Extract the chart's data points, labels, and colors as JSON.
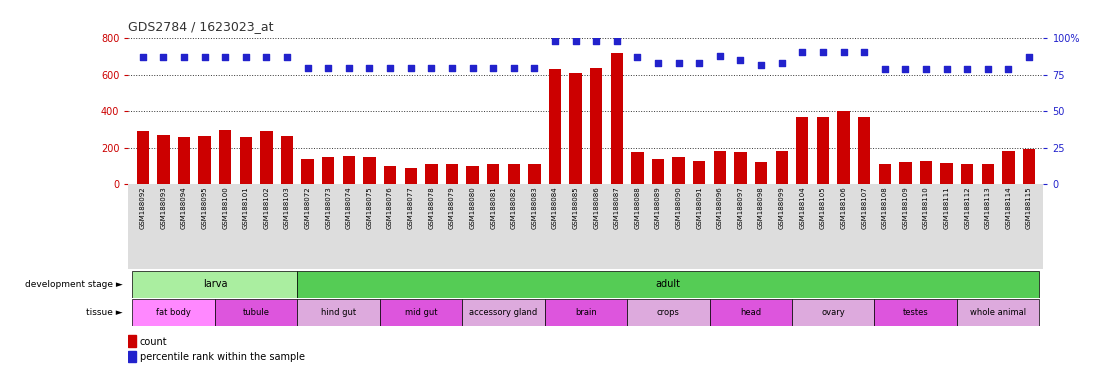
{
  "title": "GDS2784 / 1623023_at",
  "samples": [
    "GSM188092",
    "GSM188093",
    "GSM188094",
    "GSM188095",
    "GSM188100",
    "GSM188101",
    "GSM188102",
    "GSM188103",
    "GSM188072",
    "GSM188073",
    "GSM188074",
    "GSM188075",
    "GSM188076",
    "GSM188077",
    "GSM188078",
    "GSM188079",
    "GSM188080",
    "GSM188081",
    "GSM188082",
    "GSM188083",
    "GSM188084",
    "GSM188085",
    "GSM188086",
    "GSM188087",
    "GSM188088",
    "GSM188089",
    "GSM188090",
    "GSM188091",
    "GSM188096",
    "GSM188097",
    "GSM188098",
    "GSM188099",
    "GSM188104",
    "GSM188105",
    "GSM188106",
    "GSM188107",
    "GSM188108",
    "GSM188109",
    "GSM188110",
    "GSM188111",
    "GSM188112",
    "GSM188113",
    "GSM188114",
    "GSM188115"
  ],
  "counts": [
    290,
    270,
    260,
    265,
    300,
    260,
    290,
    265,
    140,
    148,
    155,
    148,
    100,
    90,
    110,
    110,
    100,
    110,
    110,
    110,
    630,
    610,
    640,
    720,
    175,
    140,
    150,
    130,
    185,
    175,
    120,
    180,
    370,
    370,
    400,
    370,
    110,
    120,
    130,
    115,
    110,
    110,
    185,
    195
  ],
  "percentile_ranks": [
    87,
    87,
    87,
    87,
    87,
    87,
    87,
    87,
    80,
    80,
    80,
    80,
    80,
    80,
    80,
    80,
    80,
    80,
    80,
    80,
    98,
    98,
    98,
    98,
    87,
    83,
    83,
    83,
    88,
    85,
    82,
    83,
    91,
    91,
    91,
    91,
    79,
    79,
    79,
    79,
    79,
    79,
    79,
    87
  ],
  "ylim_left": [
    0,
    800
  ],
  "ylim_right": [
    0,
    100
  ],
  "yticks_left": [
    0,
    200,
    400,
    600,
    800
  ],
  "yticks_right": [
    0,
    25,
    50,
    75,
    100
  ],
  "ytick_labels_right": [
    "0",
    "25",
    "50",
    "75",
    "100%"
  ],
  "development_stages": [
    {
      "label": "larva",
      "start": 0,
      "end": 7,
      "color": "#AAEEA0"
    },
    {
      "label": "adult",
      "start": 8,
      "end": 43,
      "color": "#55CC55"
    }
  ],
  "tissues": [
    {
      "label": "fat body",
      "start": 0,
      "end": 3,
      "color": "#FF88FF"
    },
    {
      "label": "tubule",
      "start": 4,
      "end": 7,
      "color": "#DD55DD"
    },
    {
      "label": "hind gut",
      "start": 8,
      "end": 11,
      "color": "#DDAADD"
    },
    {
      "label": "mid gut",
      "start": 12,
      "end": 15,
      "color": "#DD55DD"
    },
    {
      "label": "accessory gland",
      "start": 16,
      "end": 19,
      "color": "#DDAADD"
    },
    {
      "label": "brain",
      "start": 20,
      "end": 23,
      "color": "#DD55DD"
    },
    {
      "label": "crops",
      "start": 24,
      "end": 27,
      "color": "#DDAADD"
    },
    {
      "label": "head",
      "start": 28,
      "end": 31,
      "color": "#DD55DD"
    },
    {
      "label": "ovary",
      "start": 32,
      "end": 35,
      "color": "#DDAADD"
    },
    {
      "label": "testes",
      "start": 36,
      "end": 39,
      "color": "#DD55DD"
    },
    {
      "label": "whole animal",
      "start": 40,
      "end": 43,
      "color": "#DDAADD"
    }
  ],
  "bar_color": "#CC0000",
  "dot_color": "#2222CC",
  "title_color": "#333333",
  "left_axis_color": "#CC0000",
  "right_axis_color": "#2222CC",
  "background_color": "#FFFFFF",
  "grid_color": "#333333",
  "dev_stage_label": "development stage ►",
  "tissue_label": "tissue ►",
  "legend_count": "count",
  "legend_pct": "percentile rank within the sample"
}
